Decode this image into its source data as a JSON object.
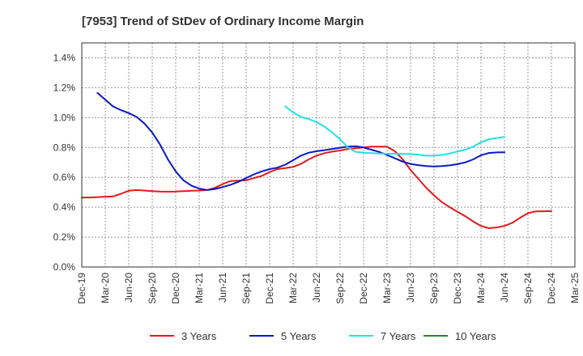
{
  "chart_data": {
    "type": "line",
    "title": "[7953]  Trend of StDev of Ordinary Income Margin",
    "xlabel": "",
    "ylabel": "",
    "x_ticks": [
      "Dec-19",
      "Mar-20",
      "Jun-20",
      "Sep-20",
      "Dec-20",
      "Mar-21",
      "Jun-21",
      "Sep-21",
      "Dec-21",
      "Mar-22",
      "Jun-22",
      "Sep-22",
      "Dec-22",
      "Mar-23",
      "Jun-23",
      "Sep-23",
      "Dec-23",
      "Mar-24",
      "Jun-24",
      "Sep-24",
      "Dec-24",
      "Mar-25"
    ],
    "y_ticks": [
      "0.0%",
      "0.2%",
      "0.4%",
      "0.6%",
      "0.8%",
      "1.0%",
      "1.2%",
      "1.4%"
    ],
    "ylim": [
      0,
      1.5
    ],
    "grid": true,
    "legend_position": "bottom",
    "series": [
      {
        "name": "3 Years",
        "color": "#e31a1c",
        "points": [
          [
            0,
            0.465
          ],
          [
            0.33,
            0.465
          ],
          [
            0.67,
            0.468
          ],
          [
            1,
            0.47
          ],
          [
            1.33,
            0.472
          ],
          [
            1.67,
            0.49
          ],
          [
            2,
            0.51
          ],
          [
            2.33,
            0.515
          ],
          [
            2.67,
            0.512
          ],
          [
            3,
            0.508
          ],
          [
            3.33,
            0.505
          ],
          [
            3.67,
            0.504
          ],
          [
            4,
            0.505
          ],
          [
            4.33,
            0.508
          ],
          [
            4.67,
            0.51
          ],
          [
            5,
            0.512
          ],
          [
            5.33,
            0.515
          ],
          [
            5.67,
            0.53
          ],
          [
            6,
            0.555
          ],
          [
            6.33,
            0.575
          ],
          [
            6.67,
            0.578
          ],
          [
            7,
            0.58
          ],
          [
            7.33,
            0.595
          ],
          [
            7.67,
            0.61
          ],
          [
            8,
            0.635
          ],
          [
            8.33,
            0.655
          ],
          [
            8.67,
            0.662
          ],
          [
            9,
            0.67
          ],
          [
            9.33,
            0.69
          ],
          [
            9.67,
            0.72
          ],
          [
            10,
            0.745
          ],
          [
            10.33,
            0.762
          ],
          [
            10.67,
            0.772
          ],
          [
            11,
            0.78
          ],
          [
            11.33,
            0.79
          ],
          [
            11.67,
            0.795
          ],
          [
            12,
            0.8
          ],
          [
            12.33,
            0.805
          ],
          [
            12.67,
            0.806
          ],
          [
            13,
            0.805
          ],
          [
            13.33,
            0.775
          ],
          [
            13.67,
            0.72
          ],
          [
            14,
            0.65
          ],
          [
            14.33,
            0.59
          ],
          [
            14.67,
            0.53
          ],
          [
            15,
            0.48
          ],
          [
            15.33,
            0.435
          ],
          [
            15.67,
            0.4
          ],
          [
            16,
            0.37
          ],
          [
            16.33,
            0.34
          ],
          [
            16.67,
            0.305
          ],
          [
            17,
            0.275
          ],
          [
            17.33,
            0.26
          ],
          [
            17.67,
            0.265
          ],
          [
            18,
            0.275
          ],
          [
            18.33,
            0.295
          ],
          [
            18.67,
            0.33
          ],
          [
            19,
            0.36
          ],
          [
            19.33,
            0.372
          ],
          [
            19.67,
            0.373
          ],
          [
            20,
            0.374
          ]
        ]
      },
      {
        "name": "5 Years",
        "color": "#0a18c8",
        "points": [
          [
            0.67,
            1.165
          ],
          [
            1,
            1.12
          ],
          [
            1.33,
            1.075
          ],
          [
            1.67,
            1.05
          ],
          [
            2,
            1.03
          ],
          [
            2.33,
            1.005
          ],
          [
            2.67,
            0.96
          ],
          [
            3,
            0.9
          ],
          [
            3.33,
            0.82
          ],
          [
            3.67,
            0.72
          ],
          [
            4,
            0.64
          ],
          [
            4.33,
            0.58
          ],
          [
            4.67,
            0.545
          ],
          [
            5,
            0.525
          ],
          [
            5.33,
            0.515
          ],
          [
            5.67,
            0.522
          ],
          [
            6,
            0.535
          ],
          [
            6.33,
            0.55
          ],
          [
            6.67,
            0.57
          ],
          [
            7,
            0.595
          ],
          [
            7.33,
            0.62
          ],
          [
            7.67,
            0.64
          ],
          [
            8,
            0.655
          ],
          [
            8.33,
            0.665
          ],
          [
            8.67,
            0.685
          ],
          [
            9,
            0.715
          ],
          [
            9.33,
            0.745
          ],
          [
            9.67,
            0.765
          ],
          [
            10,
            0.775
          ],
          [
            10.33,
            0.782
          ],
          [
            10.67,
            0.79
          ],
          [
            11,
            0.798
          ],
          [
            11.33,
            0.805
          ],
          [
            11.67,
            0.808
          ],
          [
            12,
            0.8
          ],
          [
            12.33,
            0.785
          ],
          [
            12.67,
            0.77
          ],
          [
            13,
            0.75
          ],
          [
            13.33,
            0.728
          ],
          [
            13.67,
            0.705
          ],
          [
            14,
            0.69
          ],
          [
            14.33,
            0.682
          ],
          [
            14.67,
            0.676
          ],
          [
            15,
            0.673
          ],
          [
            15.33,
            0.675
          ],
          [
            15.67,
            0.68
          ],
          [
            16,
            0.688
          ],
          [
            16.33,
            0.7
          ],
          [
            16.67,
            0.72
          ],
          [
            17,
            0.748
          ],
          [
            17.33,
            0.763
          ],
          [
            17.67,
            0.767
          ],
          [
            18,
            0.768
          ]
        ]
      },
      {
        "name": "7 Years",
        "color": "#22e0e8",
        "points": [
          [
            8.67,
            1.075
          ],
          [
            9,
            1.035
          ],
          [
            9.33,
            1.005
          ],
          [
            9.67,
            0.99
          ],
          [
            10,
            0.97
          ],
          [
            10.33,
            0.94
          ],
          [
            10.67,
            0.9
          ],
          [
            11,
            0.855
          ],
          [
            11.33,
            0.8
          ],
          [
            11.67,
            0.77
          ],
          [
            12,
            0.765
          ],
          [
            12.33,
            0.762
          ],
          [
            12.67,
            0.76
          ],
          [
            13,
            0.758
          ],
          [
            13.33,
            0.758
          ],
          [
            13.67,
            0.757
          ],
          [
            14,
            0.756
          ],
          [
            14.33,
            0.752
          ],
          [
            14.67,
            0.745
          ],
          [
            15,
            0.745
          ],
          [
            15.33,
            0.75
          ],
          [
            15.67,
            0.76
          ],
          [
            16,
            0.773
          ],
          [
            16.33,
            0.785
          ],
          [
            16.67,
            0.805
          ],
          [
            17,
            0.835
          ],
          [
            17.33,
            0.855
          ],
          [
            17.67,
            0.863
          ],
          [
            18,
            0.87
          ]
        ]
      },
      {
        "name": "10 Years",
        "color": "#1a8a1a",
        "points": []
      }
    ]
  }
}
